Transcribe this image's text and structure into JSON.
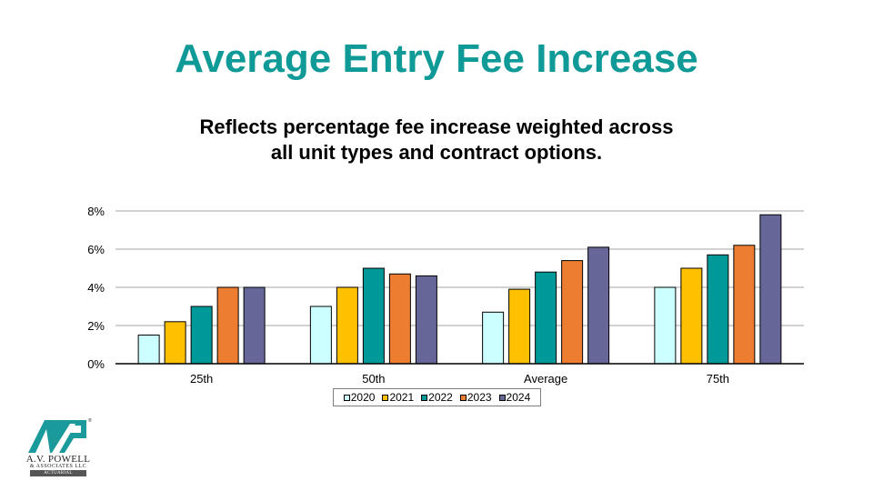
{
  "header": {
    "title": "Average Entry Fee Increase",
    "subtitle_line1": "Reflects percentage fee increase weighted across",
    "subtitle_line2": "all unit types and contract options."
  },
  "logo": {
    "mark": "AVP",
    "name": "A.V. POWELL",
    "sub": "& ASSOCIATES LLC",
    "tagline": "ACTUARIAL INNOVATORS",
    "registered": "®",
    "color": "#1a9a9a"
  },
  "chart_data": {
    "type": "bar",
    "title": "",
    "xlabel": "",
    "ylabel": "",
    "categories": [
      "25th",
      "50th",
      "Average",
      "75th"
    ],
    "ylim": [
      0,
      8
    ],
    "yticks": [
      0,
      2,
      4,
      6,
      8
    ],
    "ytick_labels": [
      "0%",
      "2%",
      "4%",
      "6%",
      "8%"
    ],
    "grid": true,
    "legend_position": "bottom",
    "series": [
      {
        "name": "2020",
        "color": "#ccffff",
        "values": [
          1.5,
          3.0,
          2.7,
          4.0
        ]
      },
      {
        "name": "2021",
        "color": "#ffc000",
        "values": [
          2.2,
          4.0,
          3.9,
          5.0
        ]
      },
      {
        "name": "2022",
        "color": "#009999",
        "values": [
          3.0,
          5.0,
          4.8,
          5.7
        ]
      },
      {
        "name": "2023",
        "color": "#ed7d31",
        "values": [
          4.0,
          4.7,
          5.4,
          6.2
        ]
      },
      {
        "name": "2024",
        "color": "#666699",
        "values": [
          4.0,
          4.6,
          6.1,
          7.8
        ]
      }
    ]
  }
}
